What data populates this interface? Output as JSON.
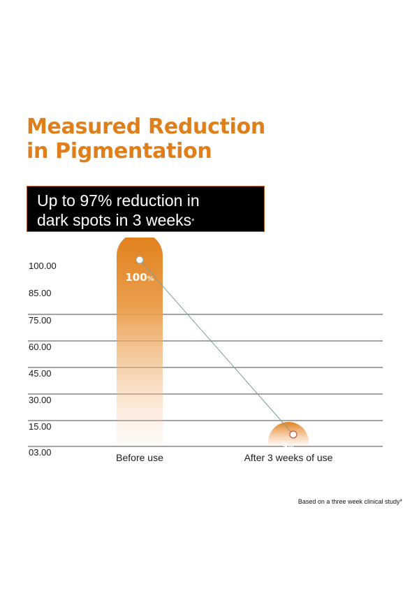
{
  "header": {
    "title_line1": "Measured Reduction",
    "title_line2": "in Pigmentation"
  },
  "banner": {
    "line1": "Up to 97% reduction in",
    "line2": "dark spots in 3 weeks",
    "asterisk": "*"
  },
  "footnote": "Based on a three week clinical study*",
  "colors": {
    "accent": "#e07f1a",
    "bar": "#e48a22",
    "connector": "#7a9e9f",
    "grid": "#4a4a4a"
  },
  "chart_data": {
    "type": "bar",
    "categories": [
      "Before use",
      "After 3 weeks of use"
    ],
    "values": [
      100,
      3
    ],
    "data_labels": [
      {
        "number": "100",
        "unit": "%"
      },
      {
        "number": "3",
        "unit": "%"
      }
    ],
    "yticks": [
      "100.00",
      "85.00",
      "75.00",
      "60.00",
      "45.00",
      "30.00",
      "15.00",
      "03.00"
    ],
    "ylim": [
      3,
      100
    ],
    "grid": true,
    "legend": "none",
    "connector_line": true
  }
}
